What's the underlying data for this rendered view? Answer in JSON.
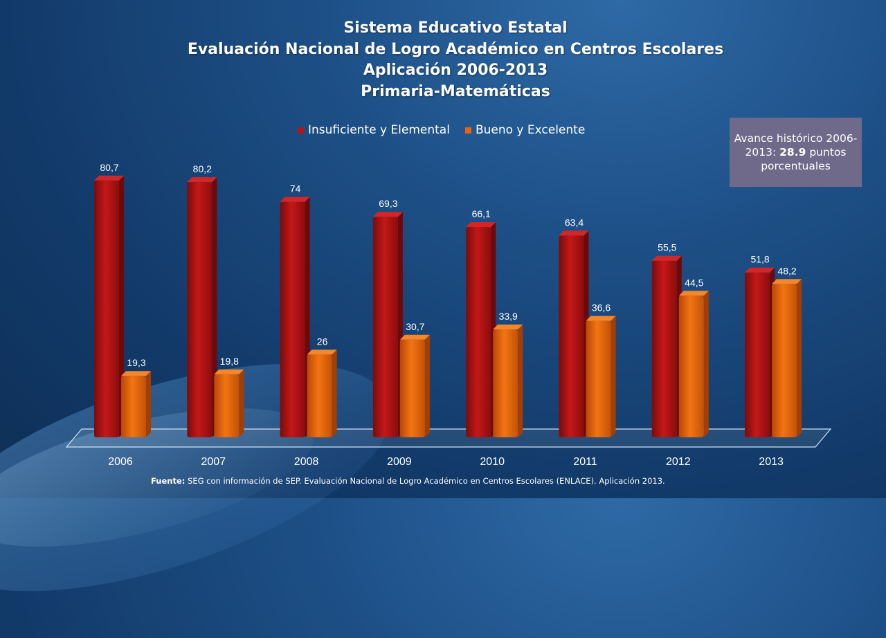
{
  "title_lines": [
    "Sistema Educativo Estatal",
    "Evaluación Nacional de Logro Académico en Centros Escolares",
    "Aplicación 2006-2013",
    "Primaria-Matemáticas"
  ],
  "avance": {
    "prefix": "Avance histórico 2006-2013:",
    "value": "28.9",
    "suffix": "puntos porcentuales"
  },
  "source": {
    "label": "Fuente:",
    "text": "SEG con información de SEP. Evaluación Nacional de Logro Académico en Centros Escolares (ENLACE). Aplicación 2013."
  },
  "colors": {
    "insuficiente": "#b31414",
    "bueno": "#e8640f"
  },
  "chart_data": {
    "type": "bar",
    "categories": [
      "2006",
      "2007",
      "2008",
      "2009",
      "2010",
      "2011",
      "2012",
      "2013"
    ],
    "series": [
      {
        "name": "Insuficiente y Elemental",
        "values": [
          80.7,
          80.2,
          74,
          69.3,
          66.1,
          63.4,
          55.5,
          51.8
        ],
        "labels": [
          "80,7",
          "80,2",
          "74",
          "69,3",
          "66,1",
          "63,4",
          "55,5",
          "51,8"
        ]
      },
      {
        "name": "Bueno y Excelente",
        "values": [
          19.3,
          19.8,
          26,
          30.7,
          33.9,
          36.6,
          44.5,
          48.2
        ],
        "labels": [
          "19,3",
          "19,8",
          "26",
          "30,7",
          "33,9",
          "36,6",
          "44,5",
          "48,2"
        ]
      }
    ],
    "ylim": [
      0,
      100
    ],
    "legend": "top",
    "grid": false
  }
}
